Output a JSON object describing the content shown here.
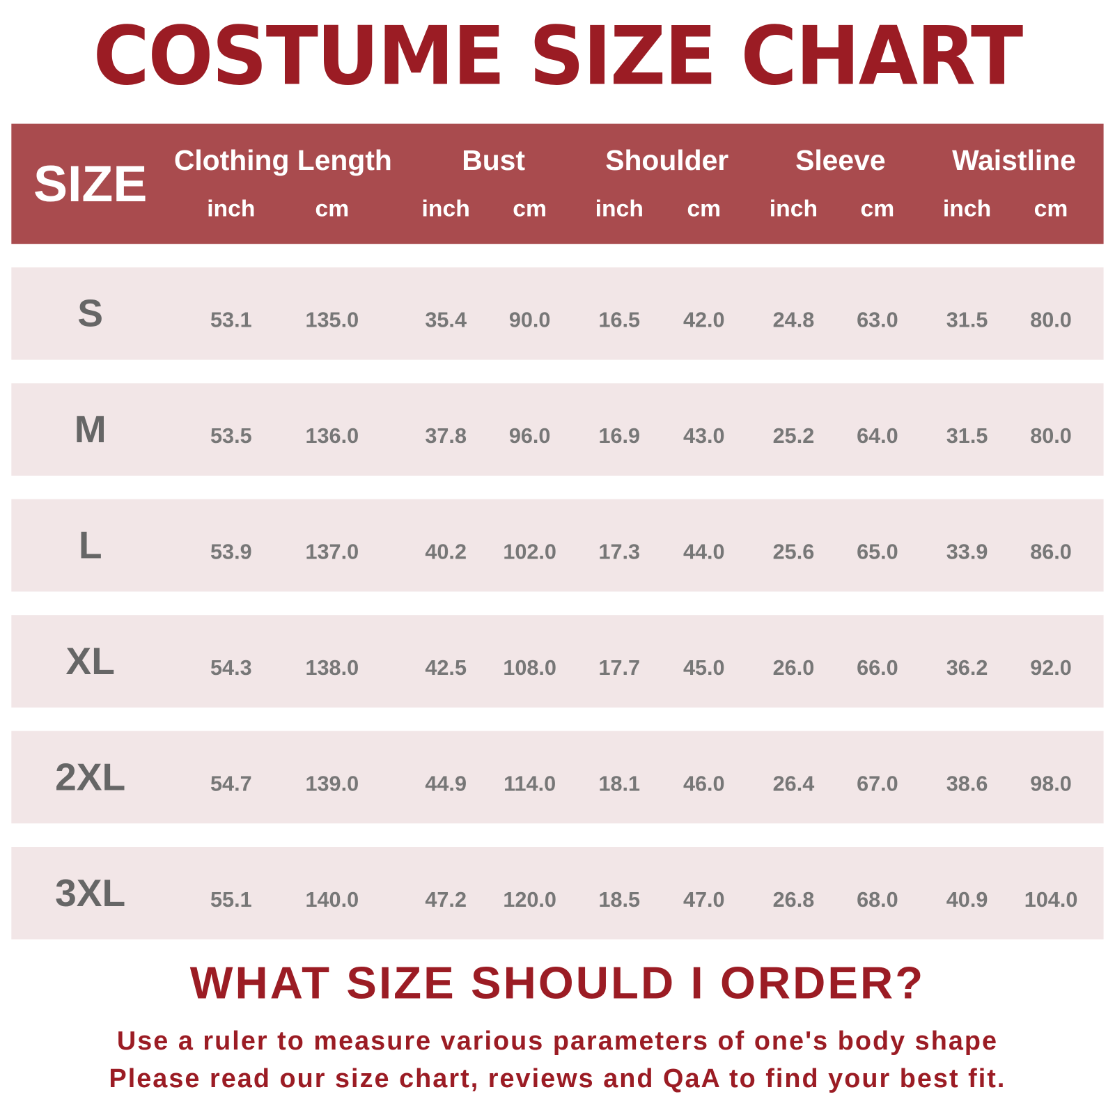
{
  "title": "COSTUME SIZE CHART",
  "header": {
    "size_label": "SIZE",
    "groups": [
      "Clothing Length",
      "Bust",
      "Shoulder",
      "Sleeve",
      "Waistline"
    ],
    "units": [
      "inch",
      "cm"
    ]
  },
  "rows": [
    {
      "size": "S",
      "values": [
        "53.1",
        "135.0",
        "35.4",
        "90.0",
        "16.5",
        "42.0",
        "24.8",
        "63.0",
        "31.5",
        "80.0"
      ]
    },
    {
      "size": "M",
      "values": [
        "53.5",
        "136.0",
        "37.8",
        "96.0",
        "16.9",
        "43.0",
        "25.2",
        "64.0",
        "31.5",
        "80.0"
      ]
    },
    {
      "size": "L",
      "values": [
        "53.9",
        "137.0",
        "40.2",
        "102.0",
        "17.3",
        "44.0",
        "25.6",
        "65.0",
        "33.9",
        "86.0"
      ]
    },
    {
      "size": "XL",
      "values": [
        "54.3",
        "138.0",
        "42.5",
        "108.0",
        "17.7",
        "45.0",
        "26.0",
        "66.0",
        "36.2",
        "92.0"
      ]
    },
    {
      "size": "2XL",
      "values": [
        "54.7",
        "139.0",
        "44.9",
        "114.0",
        "18.1",
        "46.0",
        "26.4",
        "67.0",
        "38.6",
        "98.0"
      ]
    },
    {
      "size": "3XL",
      "values": [
        "55.1",
        "140.0",
        "47.2",
        "120.0",
        "18.5",
        "47.0",
        "26.8",
        "68.0",
        "40.9",
        "104.0"
      ]
    }
  ],
  "footer": {
    "question": "WHAT SIZE SHOULD I ORDER?",
    "line1": "Use a ruler to measure various parameters of one's body shape",
    "line2": "Please read our size chart, reviews and QaA to find your best fit."
  },
  "colors": {
    "brand_red": "#9b1c24",
    "header_bg": "#a94b4e",
    "row_bg": "#f2e6e7",
    "text_gray": "#777777"
  }
}
